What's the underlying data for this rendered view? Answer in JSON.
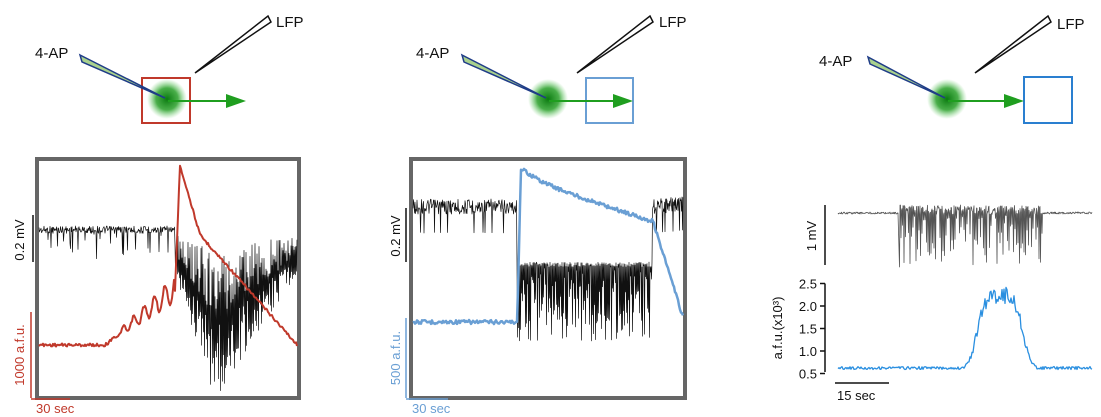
{
  "panels": [
    {
      "pipette_labels": {
        "drug": "4-AP",
        "recording": "LFP"
      },
      "scale_bars": {
        "voltage": "0.2 mV",
        "fluorescence": "1000 a.f.u.",
        "time": "30 sec"
      }
    },
    {
      "pipette_labels": {
        "drug": "4-AP",
        "recording": "LFP"
      },
      "scale_bars": {
        "voltage": "0.2 mV",
        "fluorescence": "500 a.f.u.",
        "time": "30 sec"
      }
    },
    {
      "pipette_labels": {
        "drug": "4-AP",
        "recording": "LFP"
      },
      "scale_bars": {
        "voltage": "1 mV",
        "time": "15 sec"
      },
      "fluorescence_axis": {
        "label": "a.f.u.(x10³)",
        "ylim": [
          0.4,
          2.6
        ],
        "yticks": [
          {
            "value": 2.5,
            "label": "2.5"
          },
          {
            "value": 2,
            "label": "2.0"
          },
          {
            "value": 1.5,
            "label": "1.5"
          },
          {
            "value": 1,
            "label": "1.0"
          },
          {
            "value": 0.5,
            "label": "0.5"
          }
        ]
      }
    }
  ]
}
